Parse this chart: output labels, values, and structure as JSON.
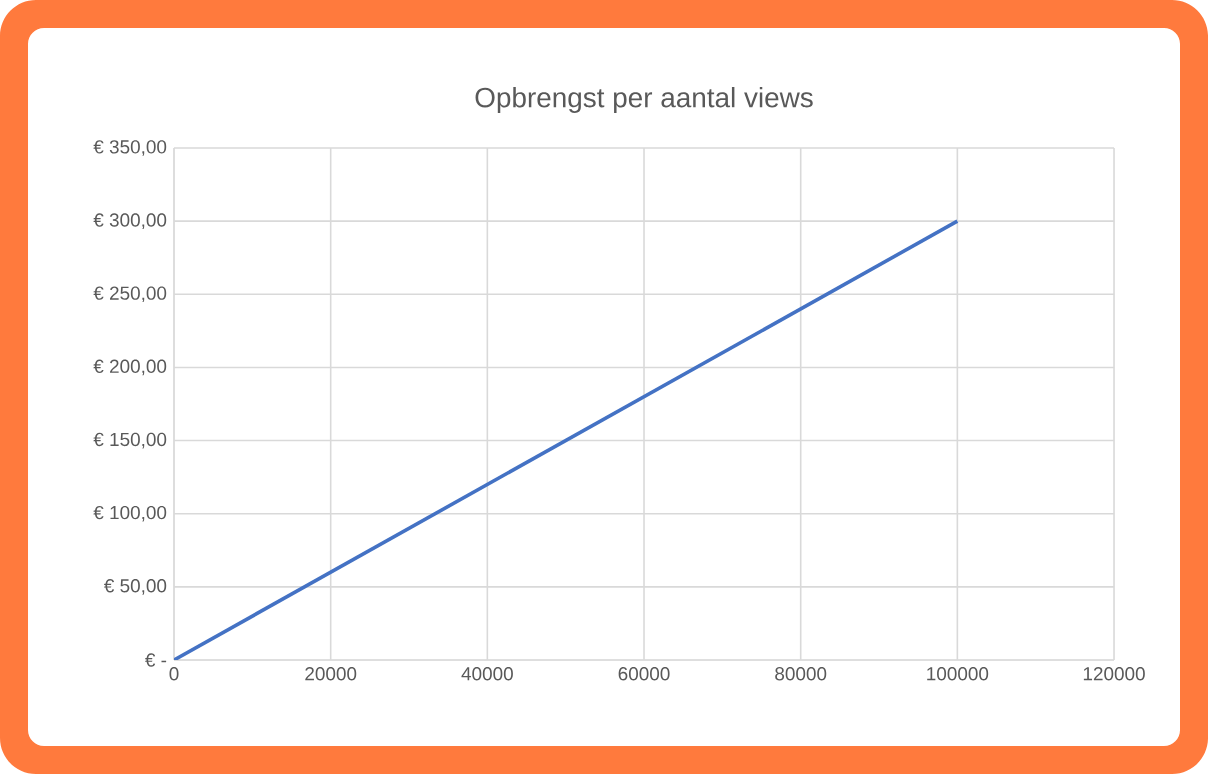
{
  "chart_data": {
    "type": "line",
    "title": "Opbrengst per aantal views",
    "x": [
      0,
      100000
    ],
    "values": [
      0,
      300
    ],
    "color": "#4472c4",
    "xlim": [
      0,
      120000
    ],
    "xticks": [
      0,
      20000,
      40000,
      60000,
      80000,
      100000,
      120000
    ],
    "ylim": [
      0,
      350
    ],
    "yticks": [
      {
        "value": 0,
        "label": "€ -"
      },
      {
        "value": 50,
        "label": "€ 50,00"
      },
      {
        "value": 100,
        "label": "€ 100,00"
      },
      {
        "value": 150,
        "label": "€ 150,00"
      },
      {
        "value": 200,
        "label": "€ 200,00"
      },
      {
        "value": 250,
        "label": "€ 250,00"
      },
      {
        "value": 300,
        "label": "€ 300,00"
      },
      {
        "value": 350,
        "label": "€ 350,00"
      }
    ],
    "grid": true
  }
}
